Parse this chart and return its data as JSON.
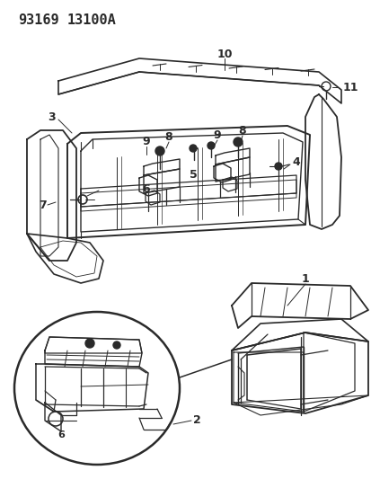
{
  "title_line1": "93169",
  "title_line2": "13100A",
  "bg_color": "#ffffff",
  "lc": "#2a2a2a",
  "header_fontsize": 11,
  "label_fontsize": 8.5
}
